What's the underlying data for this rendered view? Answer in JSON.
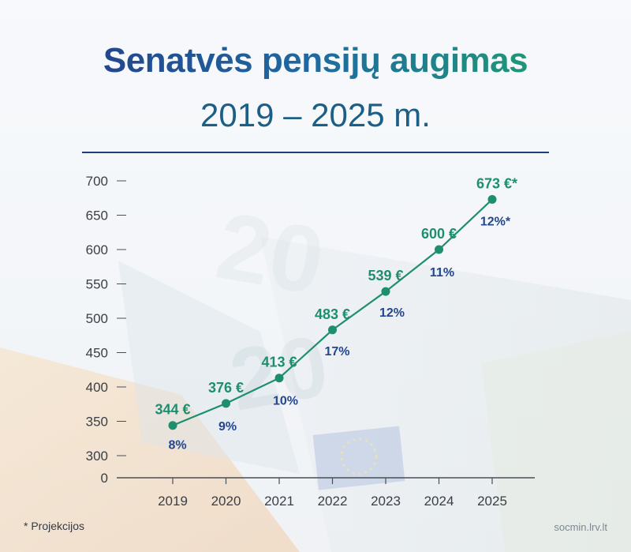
{
  "header": {
    "title": "Senatvės pensijų augimas",
    "subtitle": "2019 – 2025 m."
  },
  "footer": {
    "footnote": "* Projekcijos",
    "source": "socmin.lrv.lt"
  },
  "colors": {
    "line": "#1e8f6e",
    "value_label": "#1e8f6e",
    "percent_label": "#23478e",
    "axis": "#4a4f57",
    "tick_text": "#3a3f47"
  },
  "chart_data": {
    "type": "line",
    "title": "Senatvės pensijų augimas",
    "xlabel": "",
    "ylabel": "",
    "x": [
      "2019",
      "2020",
      "2021",
      "2022",
      "2023",
      "2024",
      "2025"
    ],
    "series": [
      {
        "values": [
          344,
          376,
          413,
          483,
          539,
          600,
          673
        ],
        "value_labels": [
          "344 €",
          "376 €",
          "413 €",
          "483 €",
          "539 €",
          "600 €",
          "673 €*"
        ],
        "growth_labels": [
          "8%",
          "9%",
          "10%",
          "17%",
          "12%",
          "11%",
          "12%*"
        ]
      }
    ],
    "yticks": [
      "0",
      "300",
      "350",
      "400",
      "450",
      "500",
      "550",
      "600",
      "650",
      "700"
    ],
    "ylim": [
      300,
      700
    ],
    "axis_break": true,
    "grid": false,
    "legend": "none"
  }
}
